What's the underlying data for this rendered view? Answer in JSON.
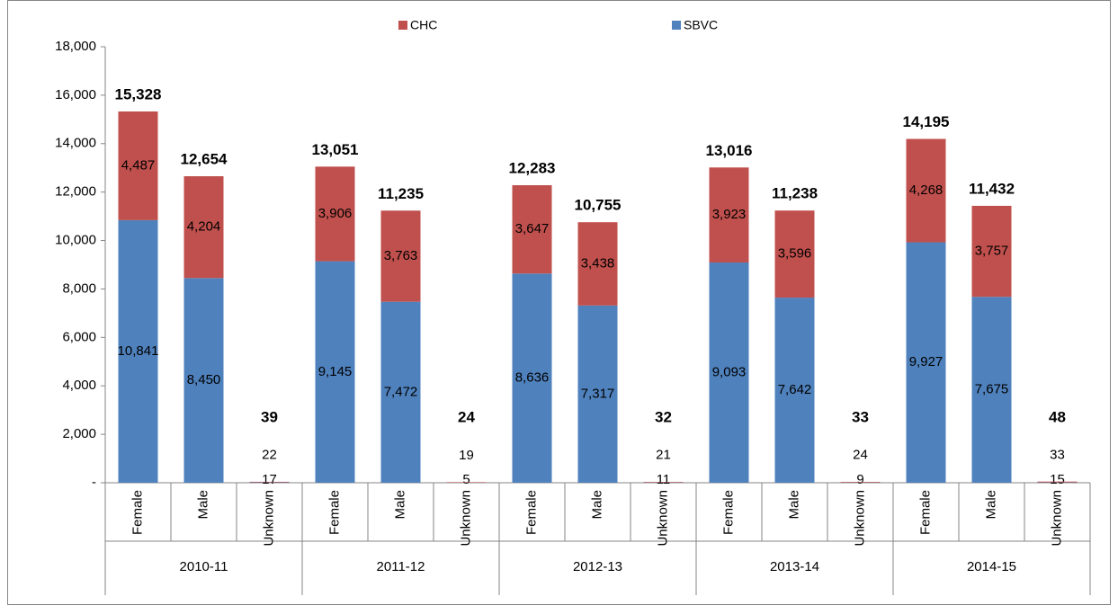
{
  "chart_data": {
    "type": "stacked-bar",
    "categories": [
      "Female",
      "Male",
      "Unknown",
      "Female",
      "Male",
      "Unknown",
      "Female",
      "Male",
      "Unknown",
      "Female",
      "Male",
      "Unknown",
      "Female",
      "Male",
      "Unknown"
    ],
    "groups": [
      "2010-11",
      "2011-12",
      "2012-13",
      "2013-14",
      "2014-15"
    ],
    "series": [
      {
        "name": "SBVC",
        "color": "#4f81bd",
        "values": [
          10841,
          8450,
          17,
          9145,
          7472,
          5,
          8636,
          7317,
          11,
          9093,
          7642,
          9,
          9927,
          7675,
          15
        ],
        "value_labels": [
          "10,841",
          "8,450",
          "17",
          "9,145",
          "7,472",
          "5",
          "8,636",
          "7,317",
          "11",
          "9,093",
          "7,642",
          "9",
          "9,927",
          "7,675",
          "15"
        ]
      },
      {
        "name": "CHC",
        "color": "#c0504d",
        "values": [
          4487,
          4204,
          22,
          3906,
          3763,
          19,
          3647,
          3438,
          21,
          3923,
          3596,
          24,
          4268,
          3757,
          33
        ],
        "value_labels": [
          "4,487",
          "4,204",
          "22",
          "3,906",
          "3,763",
          "19",
          "3,647",
          "3,438",
          "21",
          "3,923",
          "3,596",
          "24",
          "4,268",
          "3,757",
          "33"
        ]
      }
    ],
    "totals": {
      "values": [
        15328,
        12654,
        39,
        13051,
        11235,
        24,
        12283,
        10755,
        32,
        13016,
        11238,
        33,
        14195,
        11432,
        48
      ],
      "value_labels": [
        "15,328",
        "12,654",
        "39",
        "13,051",
        "11,235",
        "24",
        "12,283",
        "10,755",
        "32",
        "13,016",
        "11,238",
        "33",
        "14,195",
        "11,432",
        "48"
      ]
    },
    "ylim": [
      0,
      18000
    ],
    "yticks": [
      {
        "value": 0,
        "label": "-"
      },
      {
        "value": 2000,
        "label": "2,000"
      },
      {
        "value": 4000,
        "label": "4,000"
      },
      {
        "value": 6000,
        "label": "6,000"
      },
      {
        "value": 8000,
        "label": "8,000"
      },
      {
        "value": 10000,
        "label": "10,000"
      },
      {
        "value": 12000,
        "label": "12,000"
      },
      {
        "value": 14000,
        "label": "14,000"
      },
      {
        "value": 16000,
        "label": "16,000"
      },
      {
        "value": 18000,
        "label": "18,000"
      }
    ],
    "legend": "top",
    "grid": false
  }
}
